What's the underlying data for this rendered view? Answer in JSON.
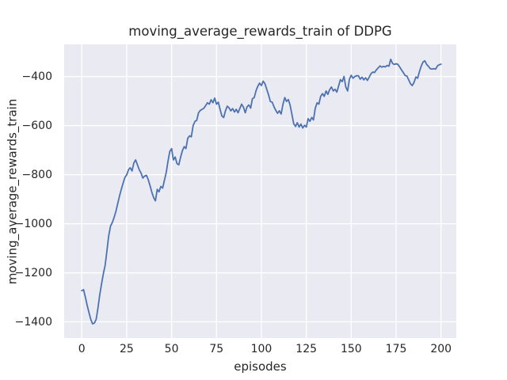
{
  "figure": {
    "title": "moving_average_rewards_train of DDPG",
    "xlabel": "episodes",
    "ylabel": "moving_average_rewards_train"
  },
  "colors": {
    "figure_bg": "#ffffff",
    "plot_bg": "#eaeaf2",
    "grid": "#ffffff",
    "line": "#4c72b0",
    "text": "#262626"
  },
  "chart_data": {
    "type": "line",
    "title": "moving_average_rewards_train of DDPG",
    "xlabel": "episodes",
    "ylabel": "moving_average_rewards_train",
    "grid": true,
    "legend": "none",
    "x_ticks": [
      0,
      25,
      50,
      75,
      100,
      125,
      150,
      175,
      200
    ],
    "x_tick_labels": [
      "0",
      "25",
      "50",
      "75",
      "100",
      "125",
      "150",
      "175",
      "200"
    ],
    "y_ticks": [
      -400,
      -600,
      -800,
      -1000,
      -1200,
      -1400
    ],
    "y_tick_labels": [
      "−400",
      "−600",
      "−800",
      "−1000",
      "−1200",
      "−1400"
    ],
    "xlim": [
      -9.8,
      208.5
    ],
    "ylim": [
      -1466,
      -269
    ],
    "series": [
      {
        "x_range": [
          0,
          200
        ],
        "x_step": 1,
        "values": [
          -1273,
          -1269,
          -1300,
          -1332,
          -1362,
          -1390,
          -1408,
          -1405,
          -1390,
          -1345,
          -1290,
          -1245,
          -1205,
          -1170,
          -1110,
          -1050,
          -1010,
          -995,
          -975,
          -950,
          -918,
          -888,
          -860,
          -835,
          -812,
          -801,
          -780,
          -772,
          -785,
          -752,
          -740,
          -760,
          -780,
          -793,
          -814,
          -806,
          -803,
          -820,
          -845,
          -872,
          -893,
          -907,
          -860,
          -870,
          -848,
          -855,
          -824,
          -792,
          -745,
          -706,
          -694,
          -740,
          -728,
          -755,
          -760,
          -730,
          -703,
          -686,
          -694,
          -652,
          -642,
          -646,
          -600,
          -583,
          -579,
          -548,
          -538,
          -534,
          -529,
          -518,
          -507,
          -513,
          -495,
          -507,
          -488,
          -513,
          -505,
          -534,
          -561,
          -567,
          -540,
          -521,
          -528,
          -540,
          -531,
          -545,
          -534,
          -548,
          -530,
          -513,
          -525,
          -548,
          -524,
          -516,
          -529,
          -491,
          -486,
          -458,
          -440,
          -427,
          -437,
          -419,
          -430,
          -453,
          -475,
          -502,
          -505,
          -523,
          -538,
          -550,
          -540,
          -553,
          -513,
          -486,
          -502,
          -494,
          -518,
          -555,
          -593,
          -604,
          -588,
          -606,
          -594,
          -610,
          -599,
          -606,
          -572,
          -583,
          -567,
          -577,
          -529,
          -507,
          -513,
          -481,
          -470,
          -481,
          -459,
          -473,
          -454,
          -443,
          -459,
          -452,
          -464,
          -438,
          -413,
          -421,
          -400,
          -443,
          -459,
          -411,
          -395,
          -407,
          -400,
          -397,
          -397,
          -411,
          -403,
          -414,
          -405,
          -416,
          -403,
          -389,
          -382,
          -384,
          -373,
          -365,
          -357,
          -362,
          -359,
          -361,
          -355,
          -358,
          -330,
          -347,
          -351,
          -348,
          -351,
          -362,
          -373,
          -384,
          -396,
          -398,
          -414,
          -430,
          -437,
          -424,
          -402,
          -407,
          -380,
          -357,
          -341,
          -336,
          -351,
          -359,
          -368,
          -370,
          -368,
          -370,
          -357,
          -352,
          -350
        ]
      }
    ]
  }
}
